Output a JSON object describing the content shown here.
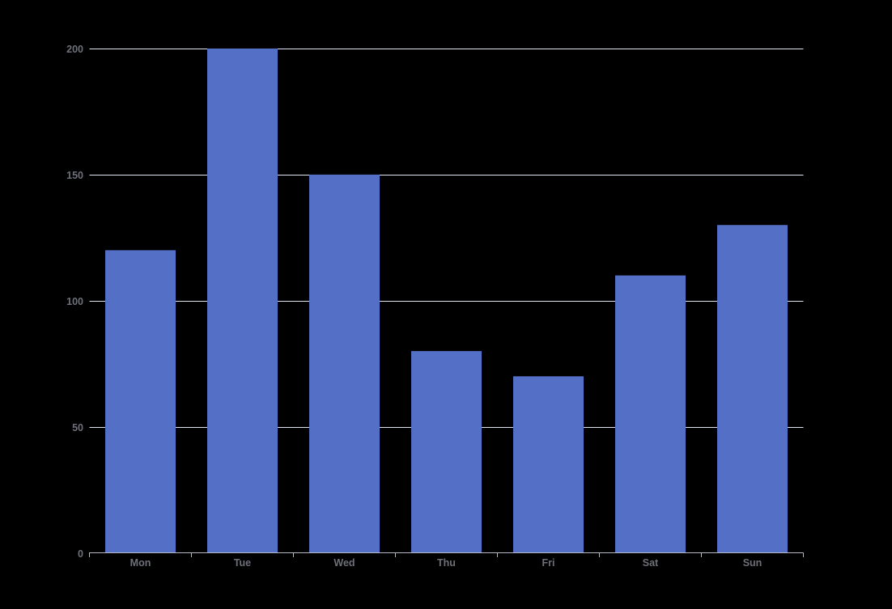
{
  "chart": {
    "background_color": "#000000",
    "bar_color": "#5470C6",
    "grid_color": "#E0E6F1",
    "axis_color": "#B8BCC2",
    "label_color": "#6E7079"
  },
  "chart_data": {
    "type": "bar",
    "categories": [
      "Mon",
      "Tue",
      "Wed",
      "Thu",
      "Fri",
      "Sat",
      "Sun"
    ],
    "values": [
      120,
      200,
      150,
      80,
      70,
      110,
      130
    ],
    "ylim": [
      0,
      200
    ],
    "yticks": [
      0,
      50,
      100,
      150,
      200
    ],
    "gridlines": "horizontal",
    "legend": "none"
  }
}
